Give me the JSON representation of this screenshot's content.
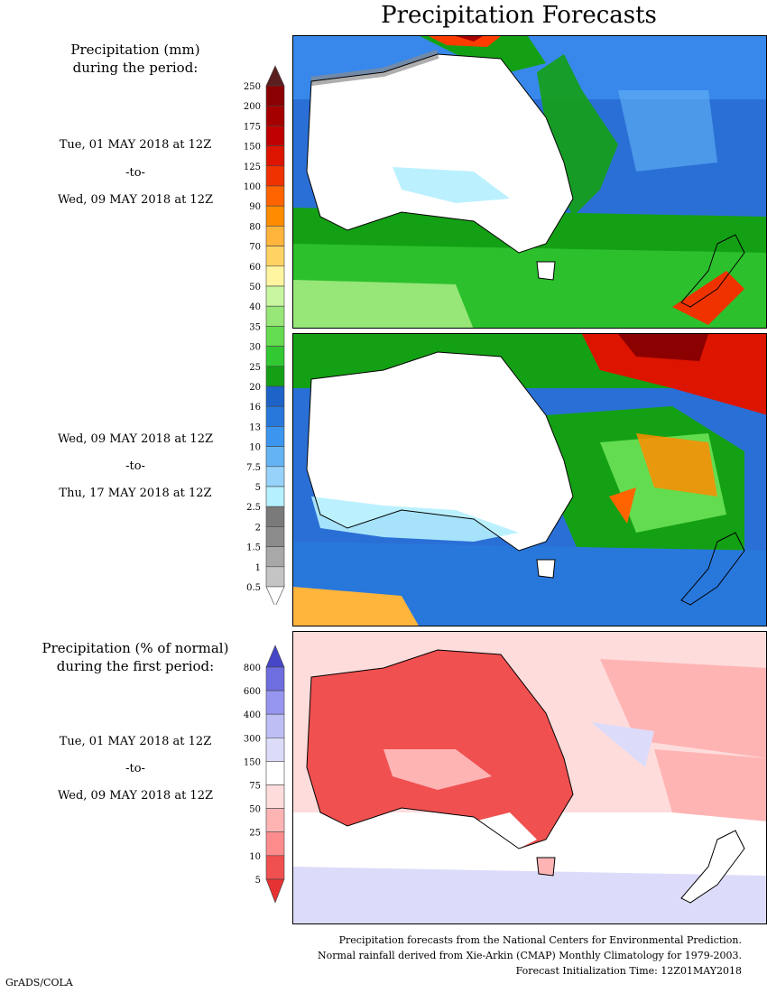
{
  "title": "Precipitation Forecasts",
  "left_panel": {
    "label_mm": [
      "Precipitation (mm)",
      "during the period:"
    ],
    "period1": {
      "from": "Tue, 01 MAY 2018 at 12Z",
      "sep": "-to-",
      "to": "Wed, 09 MAY 2018 at 12Z"
    },
    "period2": {
      "from": "Wed, 09 MAY 2018 at 12Z",
      "sep": "-to-",
      "to": "Thu, 17 MAY 2018 at 12Z"
    },
    "label_pct": [
      "Precipitation (% of normal)",
      "during the first period:"
    ],
    "period3": {
      "from": "Tue, 01 MAY 2018 at 12Z",
      "sep": "-to-",
      "to": "Wed, 09 MAY 2018 at 12Z"
    }
  },
  "colorbar_mm": {
    "labels": [
      "250",
      "200",
      "175",
      "150",
      "125",
      "100",
      "90",
      "80",
      "70",
      "60",
      "50",
      "40",
      "35",
      "30",
      "25",
      "20",
      "16",
      "13",
      "10",
      "7.5",
      "5",
      "2.5",
      "2",
      "1.5",
      "1",
      "0.5"
    ],
    "colors": [
      "#5a1e1e",
      "#8b0000",
      "#a50000",
      "#c00000",
      "#dc1400",
      "#f03200",
      "#ff6400",
      "#ff8c00",
      "#ffb43c",
      "#ffd264",
      "#fff5a0",
      "#c8f5a0",
      "#96e678",
      "#64dc50",
      "#32c832",
      "#14a014",
      "#1e64c8",
      "#2878dc",
      "#3c96f0",
      "#64b4f5",
      "#96d2fa",
      "#b4f0ff",
      "#7a7a7a",
      "#8c8c8c",
      "#a8a8a8",
      "#c4c4c4"
    ]
  },
  "colorbar_pct": {
    "labels": [
      "800",
      "600",
      "400",
      "300",
      "150",
      "75",
      "50",
      "25",
      "10",
      "5"
    ],
    "colors": [
      "#4646c8",
      "#6e6ee0",
      "#9696f0",
      "#bebef5",
      "#dcdcfa",
      "#ffffff",
      "#ffdcdc",
      "#ffb4b4",
      "#ff8c8c",
      "#f05050",
      "#e63232"
    ]
  },
  "footer": {
    "line1": "Precipitation forecasts from the National Centers for Environmental Prediction.",
    "line2": "Normal rainfall derived from Xie-Arkin (CMAP) Monthly Climatology for 1979-2003.",
    "line3": "Forecast Initialization Time: 12Z01MAY2018"
  },
  "credit": "GrADS/COLA"
}
